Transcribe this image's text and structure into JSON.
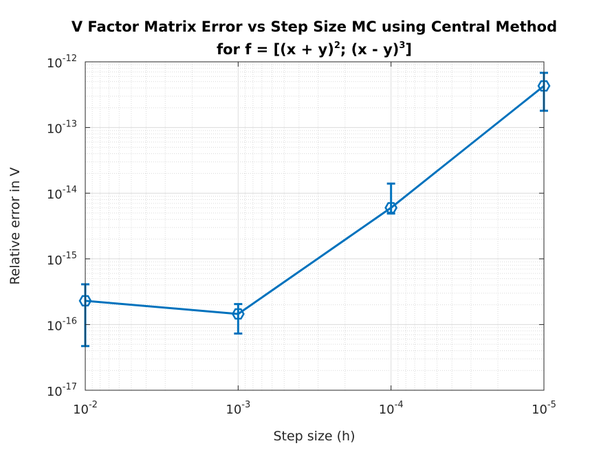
{
  "chart_data": {
    "type": "line",
    "title_line1": "V Factor Matrix Error vs Step Size MC using Central Method",
    "title_line2_prefix": "for f = [(x + y)",
    "title_line2_exp1": "2",
    "title_line2_mid": "; (x - y)",
    "title_line2_exp2": "3",
    "title_line2_suffix": "]",
    "xlabel": "Step size (h)",
    "ylabel": "Relative error in V",
    "x_scale": "log",
    "y_scale": "log",
    "x_reversed": true,
    "xlim": [
      0.01,
      1e-05
    ],
    "ylim": [
      1e-17,
      1e-12
    ],
    "x_ticks": [
      {
        "value": 0.01,
        "base": "10",
        "exp": "-2"
      },
      {
        "value": 0.001,
        "base": "10",
        "exp": "-3"
      },
      {
        "value": 0.0001,
        "base": "10",
        "exp": "-4"
      },
      {
        "value": 1e-05,
        "base": "10",
        "exp": "-5"
      }
    ],
    "y_ticks": [
      {
        "value": 1e-17,
        "base": "10",
        "exp": "-17"
      },
      {
        "value": 1e-16,
        "base": "10",
        "exp": "-16"
      },
      {
        "value": 1e-15,
        "base": "10",
        "exp": "-15"
      },
      {
        "value": 1e-14,
        "base": "10",
        "exp": "-14"
      },
      {
        "value": 1e-13,
        "base": "10",
        "exp": "-13"
      },
      {
        "value": 1e-12,
        "base": "10",
        "exp": "-12"
      }
    ],
    "grid": true,
    "minor_grid": true,
    "color": "#0072bd",
    "marker": "hexagon",
    "series": [
      {
        "x": [
          0.01,
          0.001,
          0.0001,
          1e-05
        ],
        "y": [
          2.3e-16,
          1.45e-16,
          6e-15,
          4.3e-13
        ],
        "y_lower": [
          4.7e-17,
          7.3e-17,
          4.9e-15,
          1.8e-13
        ],
        "y_upper": [
          4.1e-16,
          2.05e-16,
          1.4e-14,
          6.8e-13
        ]
      }
    ]
  }
}
